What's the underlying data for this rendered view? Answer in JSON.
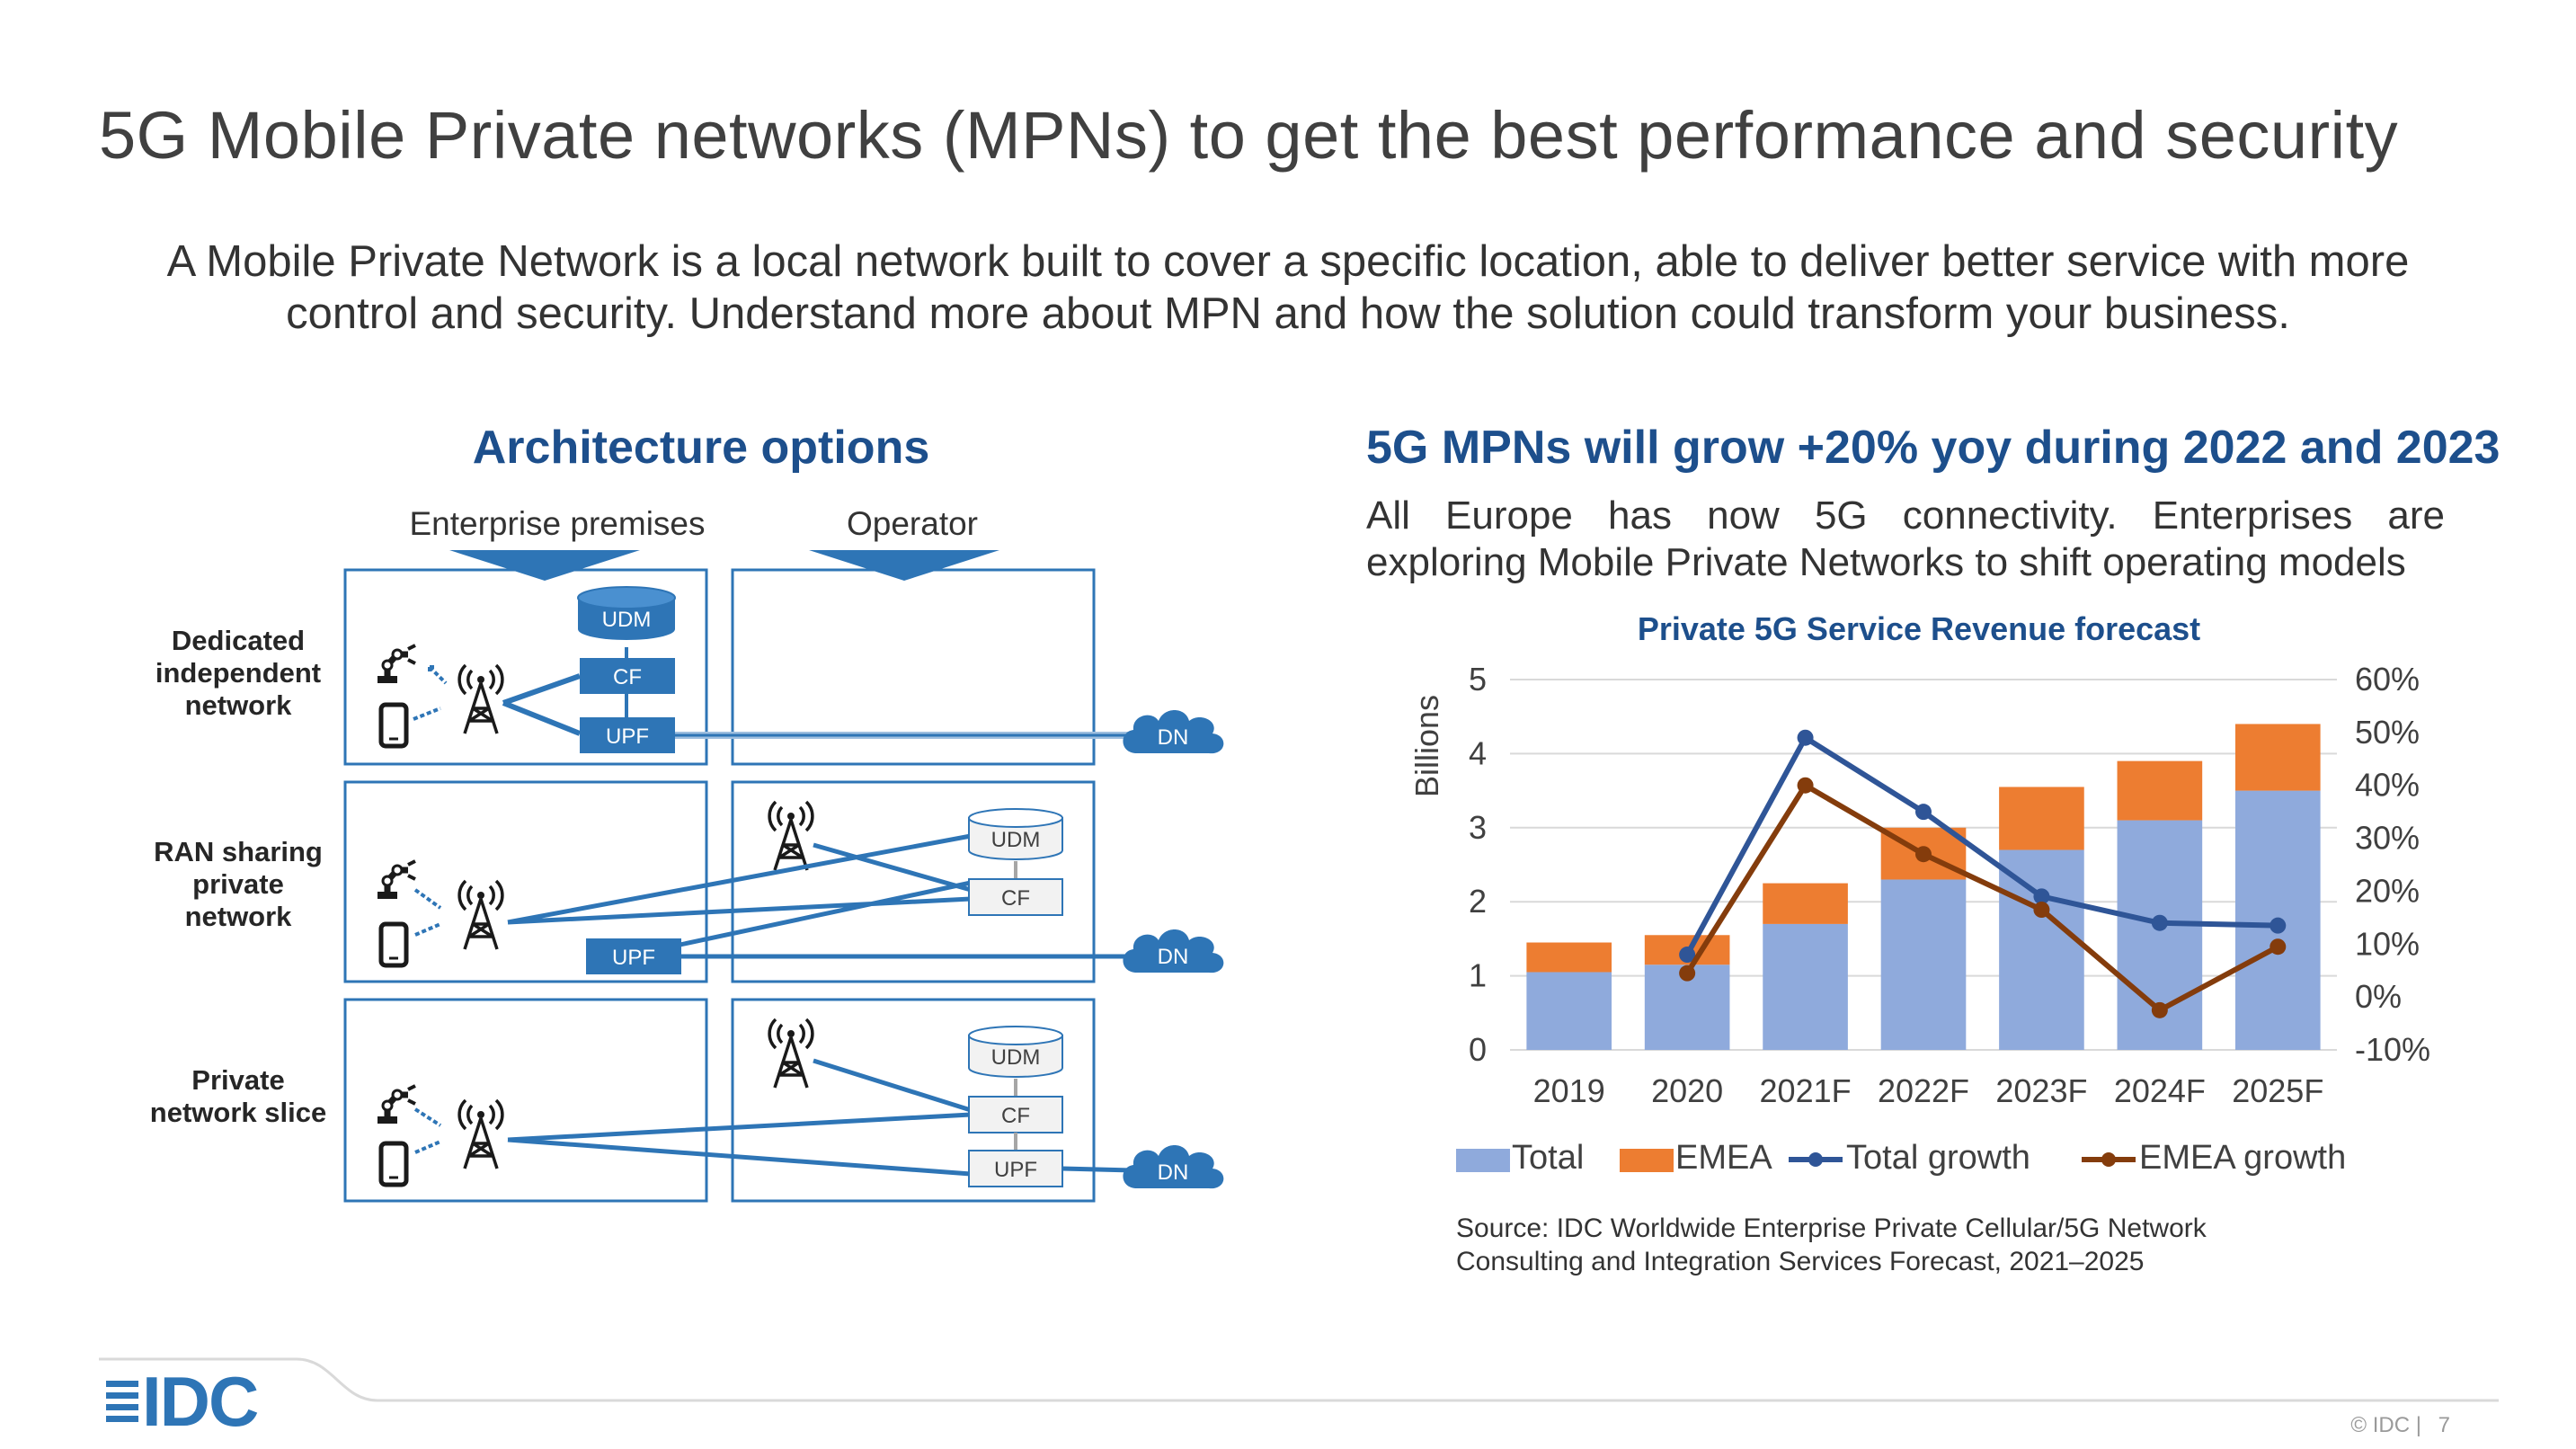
{
  "page": {
    "title": "5G Mobile Private networks (MPNs) to get the best performance and security",
    "subtitle": "A Mobile Private Network is a local network built to cover a specific location, able to deliver better service with more control and security. Understand more about MPN and how the solution could transform your business."
  },
  "architecture": {
    "title": "Architecture options",
    "enterprise_label": "Enterprise premises",
    "operator_label": "Operator",
    "rows": [
      {
        "label_line1": "Dedicated",
        "label_line2": "independent",
        "label_line3": "network"
      },
      {
        "label_line1": "RAN sharing",
        "label_line2": "private",
        "label_line3": "network"
      },
      {
        "label_line1": "Private",
        "label_line2": "network slice"
      }
    ],
    "udm": "UDM",
    "cf": "CF",
    "upf": "UPF",
    "dn": "DN"
  },
  "right_panel": {
    "heading": "5G MPNs will grow +20% yoy during 2022 and 2023",
    "description": "All Europe has now 5G connectivity. Enterprises are exploring Mobile Private Networks to shift operating models",
    "source_line1": "Source: IDC Worldwide Enterprise Private Cellular/5G Network",
    "source_line2": "Consulting and Integration Services Forecast, 2021–2025"
  },
  "chart_data": {
    "type": "bar",
    "title": "Private 5G Service Revenue forecast",
    "categories": [
      "2019",
      "2020",
      "2021F",
      "2022F",
      "2023F",
      "2024F",
      "2025F"
    ],
    "series": [
      {
        "name": "Total",
        "type": "bar",
        "axis": "left",
        "values": [
          1.05,
          1.15,
          1.7,
          2.3,
          2.7,
          3.1,
          3.5
        ]
      },
      {
        "name": "EMEA",
        "type": "bar-stacked",
        "axis": "left",
        "values": [
          0.4,
          0.4,
          0.55,
          0.7,
          0.85,
          0.8,
          0.9
        ]
      },
      {
        "name": "Total growth",
        "type": "line",
        "axis": "right",
        "values": [
          null,
          0.08,
          0.49,
          0.35,
          0.19,
          0.14,
          0.135
        ]
      },
      {
        "name": "EMEA growth",
        "type": "line",
        "axis": "right",
        "values": [
          null,
          0.045,
          0.4,
          0.27,
          0.165,
          -0.025,
          0.095
        ]
      }
    ],
    "ylabel": "Billions",
    "ylim": [
      0,
      5
    ],
    "yticks": [
      "0",
      "1",
      "2",
      "3",
      "4",
      "5"
    ],
    "y2lim": [
      -0.1,
      0.6
    ],
    "y2ticks": [
      "-10%",
      "0%",
      "10%",
      "20%",
      "30%",
      "40%",
      "50%",
      "60%"
    ],
    "grid": true,
    "legend": "bottom",
    "colors": {
      "Total": "#8faadc",
      "EMEA": "#ed7d31",
      "Total growth": "#2f5597",
      "EMEA growth": "#843c0c"
    }
  },
  "footer": {
    "logo_text": "IDC",
    "copyright": "© IDC |",
    "page_number": "7"
  },
  "colors": {
    "accent": "#1d4f8c",
    "diagram_blue": "#2e75b6"
  }
}
